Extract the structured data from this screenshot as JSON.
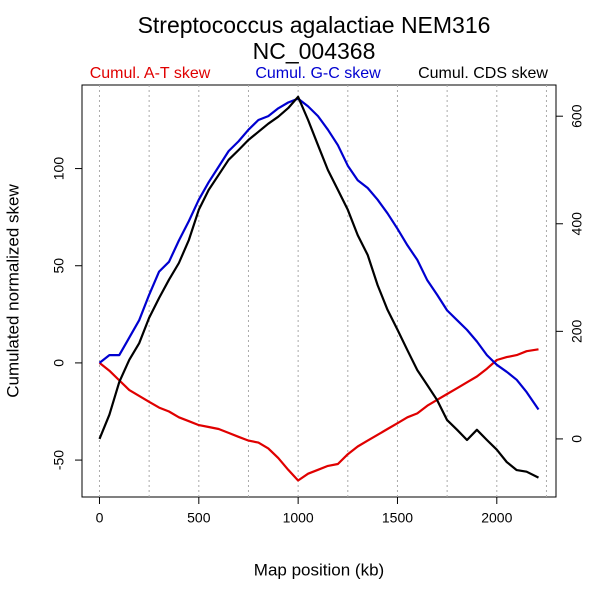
{
  "chart_data": {
    "type": "line",
    "title": "Streptococcus agalactiae NEM316",
    "subtitle": "NC_004368",
    "x_label": "Map position (kb)",
    "y_label": "Cumulated normalized skew",
    "legend": "top",
    "xlim": [
      -88,
      2298
    ],
    "xticks": [
      0,
      500,
      1000,
      1500,
      2000
    ],
    "xgrid": [
      0,
      250,
      500,
      750,
      1000,
      1250,
      1500,
      1750,
      2000,
      2250
    ],
    "ylim": [
      -69,
      143
    ],
    "yticks": [
      -50,
      0,
      50,
      100
    ],
    "y2lim": [
      -108,
      658
    ],
    "y2ticks": [
      0,
      200,
      400,
      600
    ],
    "x": [
      0,
      50,
      100,
      150,
      200,
      250,
      300,
      350,
      400,
      450,
      500,
      550,
      600,
      650,
      700,
      750,
      800,
      850,
      900,
      950,
      1000,
      1050,
      1100,
      1150,
      1200,
      1250,
      1300,
      1350,
      1400,
      1450,
      1500,
      1550,
      1600,
      1650,
      1700,
      1750,
      1800,
      1850,
      1900,
      1950,
      2000,
      2050,
      2100,
      2150,
      2210
    ],
    "series": [
      {
        "name": "Cumul. A-T skew",
        "color": "#e00000",
        "values": [
          0,
          -4,
          -9,
          -14,
          -17,
          -20,
          -23,
          -25,
          -28,
          -30,
          -32,
          -33,
          -34,
          -36,
          -38,
          -40,
          -41,
          -44,
          -49,
          -55,
          -60.5,
          -57,
          -55,
          -53,
          -52,
          -47,
          -43,
          -40,
          -37,
          -34,
          -31,
          -28,
          -26,
          -22,
          -19,
          -16,
          -13,
          -10,
          -7,
          -3,
          1.5,
          3,
          4,
          6,
          7
        ]
      },
      {
        "name": "Cumul. G-C skew",
        "color": "#0000d0",
        "values": [
          0,
          4,
          4,
          13,
          22,
          35,
          47,
          52,
          63,
          73,
          84,
          93,
          101,
          109,
          114,
          120,
          125,
          127,
          131,
          134,
          136,
          132,
          127,
          120,
          112,
          101.5,
          94,
          90,
          84,
          77,
          69,
          60.5,
          53,
          42.5,
          35,
          27,
          22,
          17,
          11,
          4,
          -1,
          -4.6,
          -8.7,
          -15,
          -24
        ]
      },
      {
        "name": "Cumul. CDS skew",
        "color": "#000000",
        "axis": "y2",
        "values": [
          0,
          45,
          106,
          147,
          178,
          225,
          262,
          296,
          327,
          370,
          426,
          463,
          491,
          519,
          537,
          556,
          571,
          586,
          599,
          615,
          636,
          593,
          546,
          500,
          463,
          426,
          379,
          342,
          286,
          240,
          203,
          165,
          128,
          100,
          72,
          35,
          17,
          -2,
          17,
          -2,
          -20,
          -43,
          -58,
          -61,
          -72
        ]
      }
    ]
  }
}
